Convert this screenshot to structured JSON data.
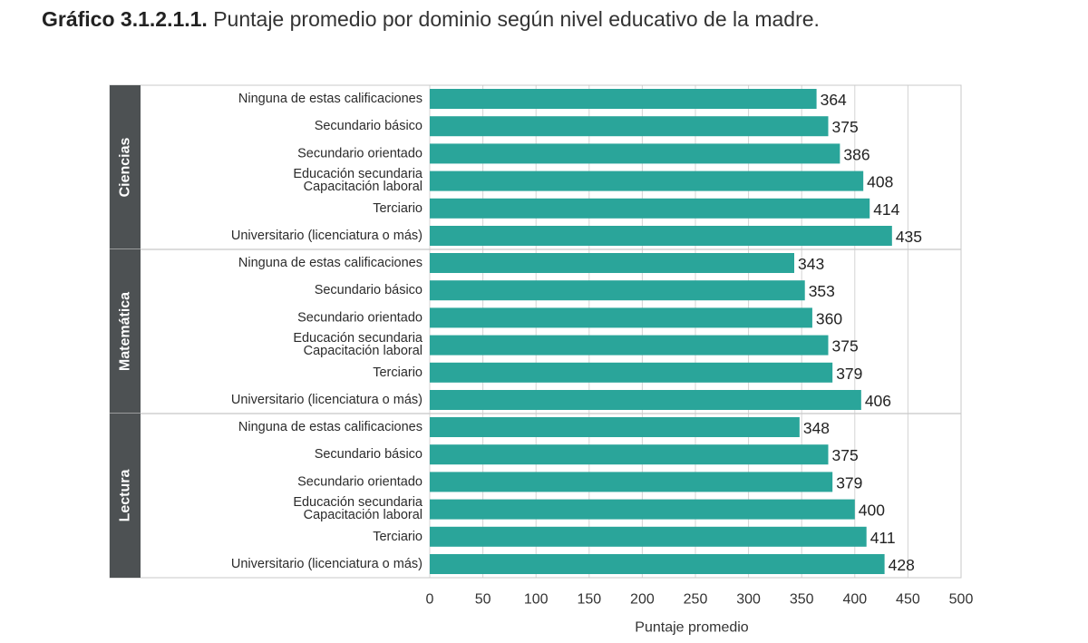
{
  "title": {
    "number": "Gráfico 3.1.2.1.1.",
    "text": "Puntaje promedio por dominio según nivel educativo de la madre."
  },
  "colors": {
    "bar": "#2aa59a",
    "panel_strip": "#4d5153",
    "strip_text": "#ffffff",
    "grid": "#d4d4d4",
    "border": "#c8c8c8"
  },
  "chart_data": {
    "type": "bar",
    "orientation": "horizontal",
    "xlabel": "Puntaje promedio",
    "ylabel": "",
    "xlim": [
      0,
      500
    ],
    "xticks": [
      0,
      50,
      100,
      150,
      200,
      250,
      300,
      350,
      400,
      450,
      500
    ],
    "grid": true,
    "categories": [
      "Ninguna de estas calificaciones",
      "Secundario básico",
      "Secundario orientado",
      "Educación secundaria Capacitación laboral",
      "Terciario",
      "Universitario (licenciatura o más)"
    ],
    "panels": [
      {
        "name": "Ciencias",
        "values": [
          364,
          375,
          386,
          408,
          414,
          435
        ]
      },
      {
        "name": "Matemática",
        "values": [
          343,
          353,
          360,
          375,
          379,
          406
        ]
      },
      {
        "name": "Lectura",
        "values": [
          348,
          375,
          379,
          400,
          411,
          428
        ]
      }
    ]
  }
}
